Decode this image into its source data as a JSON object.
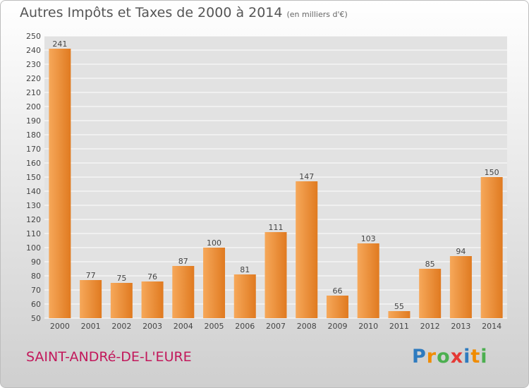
{
  "header": {
    "title": "Autres Impôts et Taxes de 2000 à 2014",
    "subtitle": "(en milliers d'€)"
  },
  "footer": {
    "commune": "SAINT-ANDRé-DE-L'EURE",
    "logo_letters": [
      "P",
      "r",
      "o",
      "x",
      "i",
      "t",
      "i"
    ],
    "logo_colors": [
      "#2e7bbf",
      "#f08c00",
      "#4caf50",
      "#e53935",
      "#2e7bbf",
      "#f08c00",
      "#4caf50"
    ]
  },
  "colors": {
    "bar_light": "#f6a85a",
    "bar_dark": "#e07a20",
    "grid": "#ffffff",
    "text": "#444444",
    "commune": "#c2185b"
  },
  "chart_data": {
    "type": "bar",
    "categories": [
      "2000",
      "2001",
      "2002",
      "2003",
      "2004",
      "2005",
      "2006",
      "2007",
      "2008",
      "2009",
      "2010",
      "2011",
      "2012",
      "2013",
      "2014"
    ],
    "values": [
      241,
      77,
      75,
      76,
      87,
      100,
      81,
      111,
      147,
      66,
      103,
      55,
      85,
      94,
      150
    ],
    "title": "Autres Impôts et Taxes de 2000 à 2014",
    "subtitle": "(en milliers d'€)",
    "ylim": [
      50,
      250
    ],
    "ytick_step": 10,
    "grid": true,
    "legend": false
  }
}
